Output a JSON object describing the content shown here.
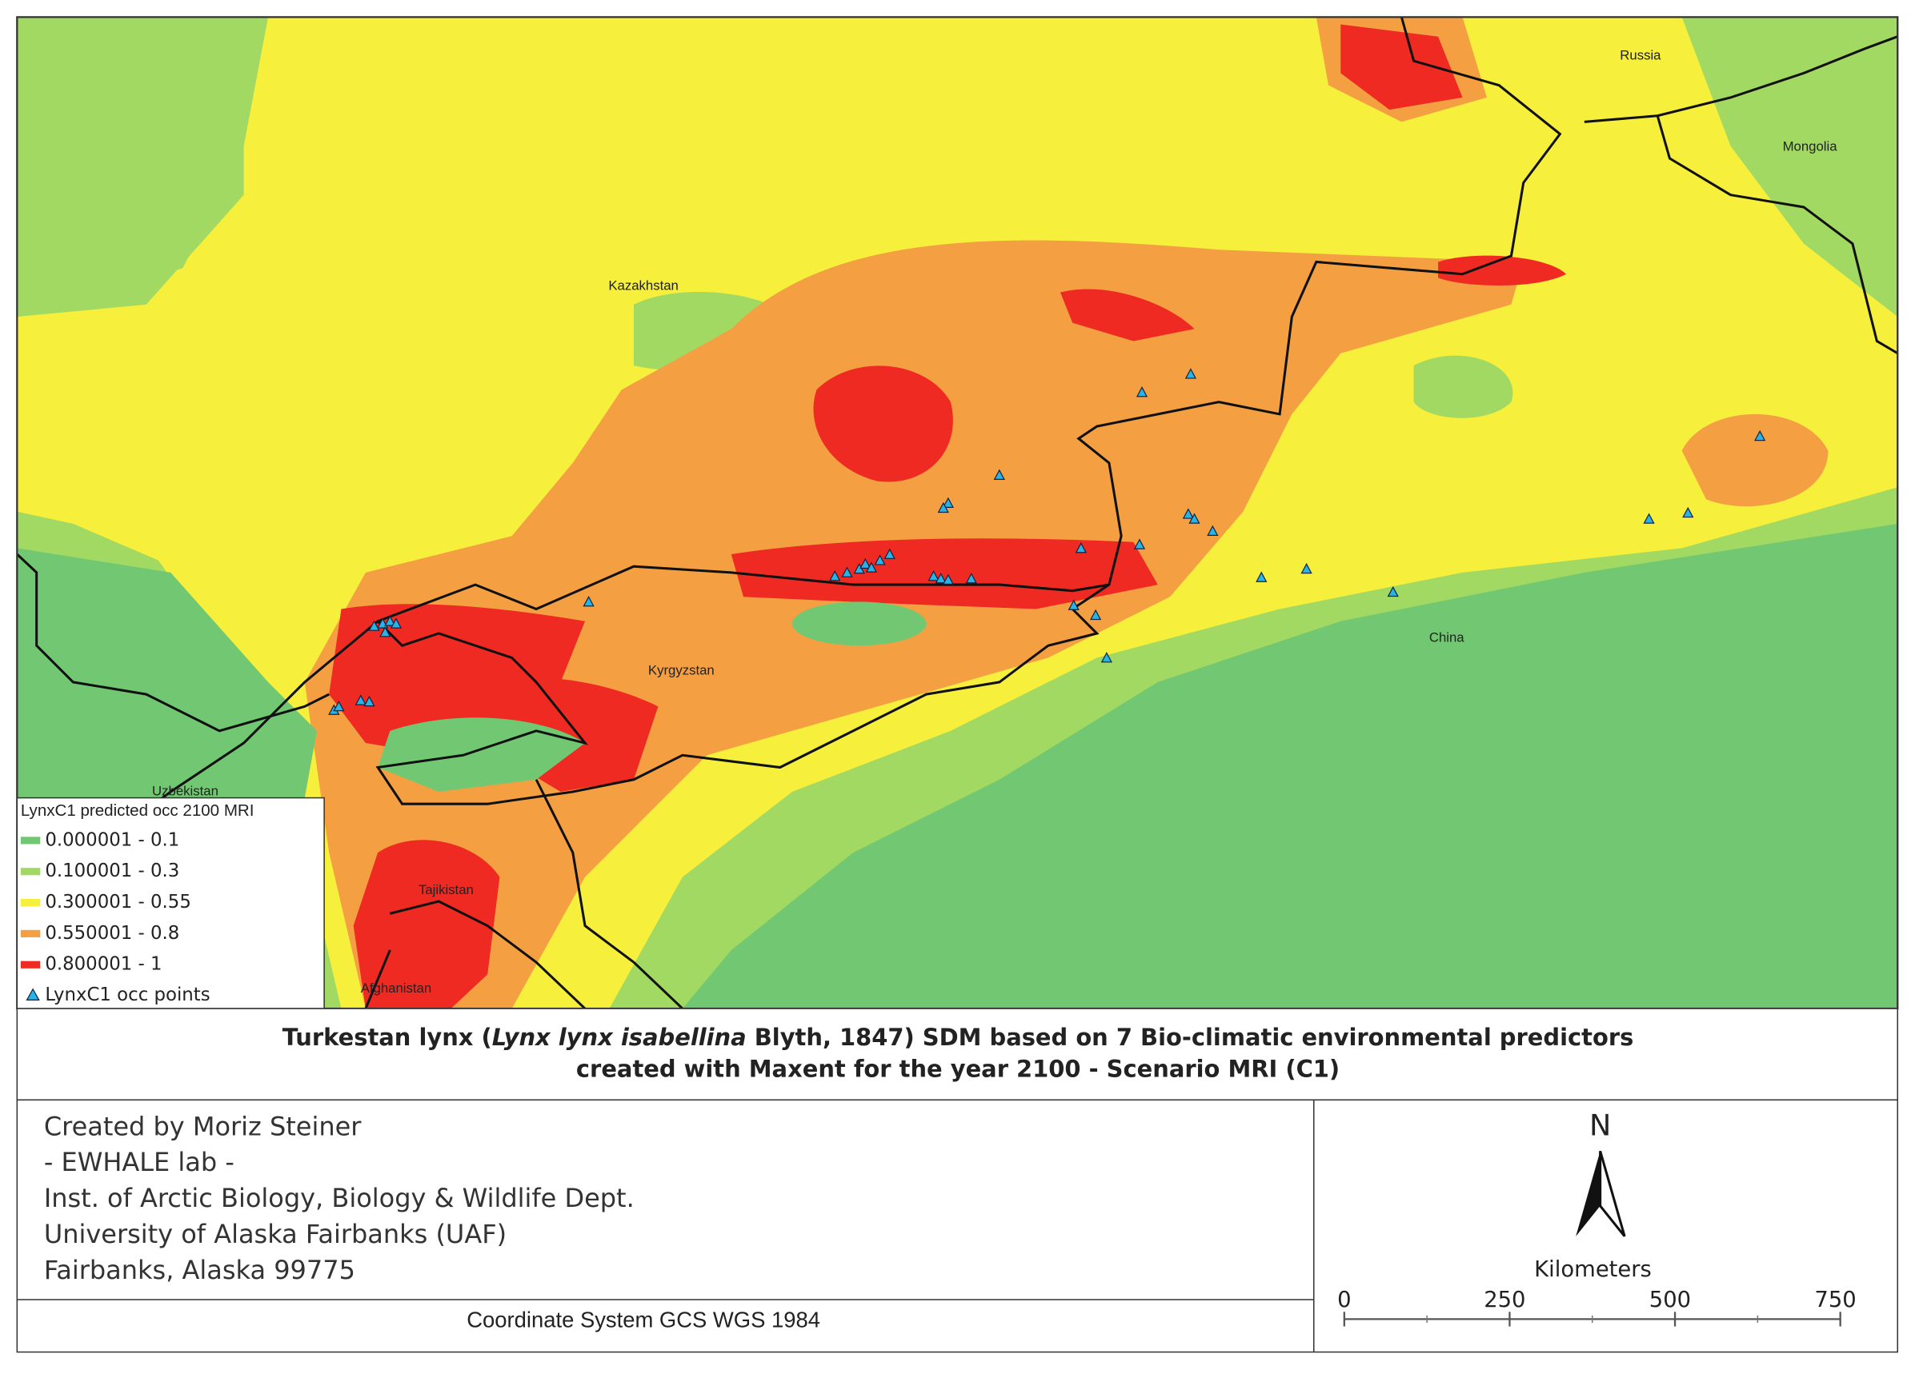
{
  "map": {
    "country_labels": [
      "Russia",
      "Mongolia",
      "Kazakhstan",
      "Kyrgyzstan",
      "China",
      "Uzbekistan",
      "Tajikistan",
      "Afghanistan"
    ],
    "legend": {
      "title": "LynxC1 predicted occ 2100 MRI",
      "classes": [
        {
          "label": "0.000001 - 0.1",
          "color": "#72c872"
        },
        {
          "label": "0.100001 - 0.3",
          "color": "#a2d962"
        },
        {
          "label": "0.300001 - 0.55",
          "color": "#f6ef3c"
        },
        {
          "label": "0.550001 - 0.8",
          "color": "#f4a042"
        },
        {
          "label": "0.800001 - 1",
          "color": "#ee2a22"
        }
      ],
      "points_label": "LynxC1 occ points"
    }
  },
  "title": {
    "line1": [
      "Turkestan lynx (",
      "Lynx lynx isabellina",
      " Blyth, 1847) SDM based on 7 Bio-climatic environmental predictors"
    ],
    "line2": "created with Maxent for the year 2100 - Scenario MRI (C1)"
  },
  "credits": [
    "Created by Moriz Steiner",
    "- EWHALE lab -",
    "Inst. of Arctic Biology,  Biology & Wildlife Dept.",
    "University of Alaska Fairbanks (UAF)",
    "Fairbanks, Alaska 99775"
  ],
  "coordinate_system": "Coordinate System GCS WGS 1984",
  "north": "N",
  "scale": {
    "unit": "Kilometers",
    "ticks": [
      0,
      250,
      500,
      750
    ]
  }
}
